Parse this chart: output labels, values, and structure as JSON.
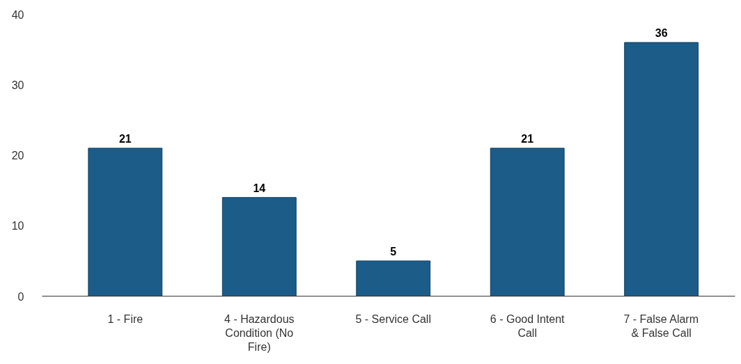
{
  "chart_data": {
    "type": "bar",
    "categories": [
      "1 - Fire",
      "4 - Hazardous Condition (No Fire)",
      "5 - Service Call",
      "6 - Good Intent Call",
      "7 - False Alarm & False Call"
    ],
    "values": [
      21,
      14,
      5,
      21,
      36
    ],
    "color": "#1c5c88",
    "ylim": [
      0,
      40
    ],
    "yticks": [
      0,
      10,
      20,
      30,
      40
    ],
    "grid": false,
    "data_labels": true
  }
}
